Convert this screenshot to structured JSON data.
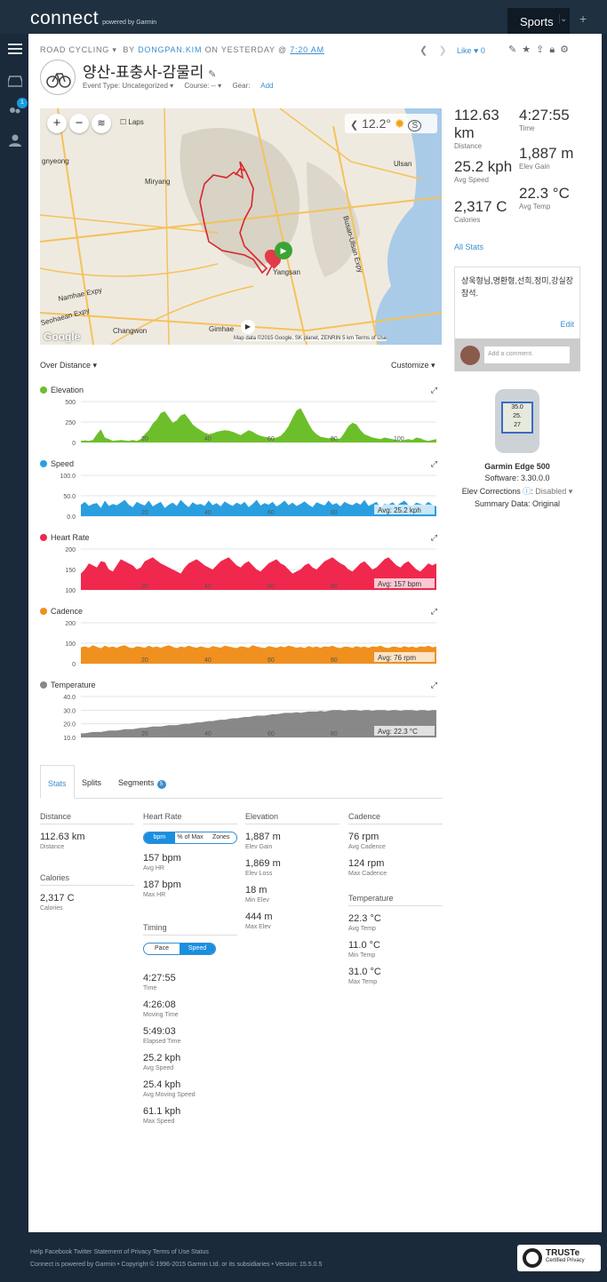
{
  "brand": {
    "logo": "connect",
    "powered": "powered by Garmin"
  },
  "topnav": {
    "sports": "Sports",
    "caret": "⌄",
    "plus": "+"
  },
  "notif_count": "1",
  "activity": {
    "type": "ROAD CYCLING",
    "by": "BY",
    "user": "DONGPAN.KIM",
    "on": "ON YESTERDAY @",
    "time": "7:20 AM",
    "title": "양산-표충사-감물리",
    "event_type": "Event Type: Uncategorized ▾",
    "course": "Course: -- ▾",
    "gear_label": "Gear:",
    "gear_add": "Add",
    "like": "Like",
    "like_count": "0"
  },
  "map": {
    "laps": "Laps",
    "temp": "12.2°",
    "labels": [
      "gnyeong",
      "Miryang",
      "Ulsan",
      "Changwon",
      "Gimhae",
      "Yangsan",
      "Namhae Expy",
      "Busan-Ulsan Expy",
      "Seohaean Expy"
    ],
    "footer": "Map data ©2015 Google, SK planet, ZENRIN   5 km   Terms of Use",
    "google": "Google"
  },
  "summary": {
    "distance": {
      "value": "112.63 km",
      "label": "Distance"
    },
    "time": {
      "value": "4:27:55",
      "label": "Time"
    },
    "speed": {
      "value": "25.2 kph",
      "label": "Avg Speed"
    },
    "elev": {
      "value": "1,887 m",
      "label": "Elev Gain"
    },
    "calories": {
      "value": "2,317 C",
      "label": "Calories"
    },
    "temp": {
      "value": "22.3 °C",
      "label": "Avg Temp"
    },
    "all_stats": "All Stats"
  },
  "comment": {
    "text": "상욱형님,명환형,선희,정미,강실장 참석.",
    "edit": "Edit",
    "placeholder": "Add a comment."
  },
  "device": {
    "name": "Garmin Edge 500",
    "software": "Software: 3.30.0.0",
    "elev_label": "Elev Corrections",
    "elev_value": "Disabled ▾",
    "summary": "Summary Data: Original",
    "screen": [
      "35.0",
      "25.",
      "27"
    ]
  },
  "charts_header": {
    "over": "Over Distance ▾",
    "customize": "Customize ▾"
  },
  "chart_data": [
    {
      "type": "area",
      "title": "Elevation",
      "color": "#6cbf2a",
      "ylim": [
        0,
        500
      ],
      "yticks": [
        "500",
        "250",
        "0"
      ],
      "xticks": [
        "20",
        "40",
        "60",
        "80",
        "100"
      ],
      "avg": "",
      "values": [
        20,
        25,
        20,
        30,
        100,
        160,
        60,
        40,
        20,
        25,
        30,
        25,
        20,
        30,
        20,
        40,
        100,
        150,
        230,
        280,
        360,
        380,
        310,
        240,
        270,
        330,
        350,
        290,
        220,
        180,
        150,
        120,
        100,
        110,
        130,
        140,
        150,
        145,
        130,
        110,
        90,
        120,
        150,
        130,
        100,
        80,
        70,
        60,
        50,
        60,
        80,
        130,
        200,
        300,
        390,
        420,
        330,
        230,
        150,
        100,
        70,
        60,
        50,
        60,
        40,
        50,
        120,
        200,
        240,
        220,
        150,
        100,
        80,
        60,
        50,
        40,
        60,
        50,
        40,
        30,
        20,
        30,
        40,
        30,
        60,
        50,
        30,
        20,
        30,
        40
      ]
    },
    {
      "type": "area",
      "title": "Speed",
      "color": "#2a9fe0",
      "ylim": [
        0,
        100
      ],
      "yticks": [
        "100.0",
        "50.0",
        "0.0"
      ],
      "xticks": [
        "20",
        "40",
        "60",
        "80",
        "100"
      ],
      "avg": "Avg: 25.2 kph",
      "values": [
        28,
        35,
        25,
        30,
        32,
        20,
        38,
        25,
        30,
        27,
        33,
        40,
        28,
        22,
        35,
        30,
        26,
        38,
        24,
        30,
        35,
        20,
        28,
        33,
        25,
        40,
        30,
        22,
        34,
        28,
        30,
        25,
        38,
        27,
        32,
        24,
        36,
        30,
        25,
        33,
        28,
        35,
        22,
        30,
        40,
        26,
        32,
        28,
        35,
        24,
        30,
        38,
        27,
        33,
        25,
        30,
        36,
        28,
        22,
        34,
        30,
        26,
        38,
        28,
        32,
        24,
        35,
        30,
        27,
        33,
        28,
        40,
        25,
        30,
        35,
        22,
        30,
        28,
        34,
        26,
        32,
        38,
        28,
        25,
        33,
        30,
        27,
        35,
        28,
        24
      ]
    },
    {
      "type": "area",
      "title": "Heart Rate",
      "color": "#f0284e",
      "ylim": [
        100,
        200
      ],
      "yticks": [
        "200",
        "150",
        "100"
      ],
      "xticks": [
        "20",
        "40",
        "60",
        "80",
        "100"
      ],
      "avg": "Avg: 157 bpm",
      "values": [
        140,
        150,
        165,
        160,
        155,
        170,
        168,
        150,
        145,
        160,
        175,
        170,
        165,
        160,
        150,
        155,
        170,
        175,
        180,
        172,
        165,
        160,
        155,
        150,
        145,
        140,
        155,
        165,
        170,
        175,
        168,
        160,
        155,
        150,
        160,
        170,
        175,
        180,
        170,
        160,
        155,
        165,
        170,
        160,
        150,
        145,
        155,
        165,
        170,
        175,
        165,
        160,
        150,
        140,
        145,
        150,
        160,
        165,
        155,
        150,
        160,
        170,
        175,
        180,
        172,
        165,
        160,
        150,
        145,
        155,
        165,
        170,
        160,
        150,
        155,
        165,
        175,
        180,
        170,
        160,
        155,
        165,
        170,
        160,
        150,
        145,
        155,
        165,
        160,
        165
      ]
    },
    {
      "type": "area",
      "title": "Cadence",
      "color": "#f0901e",
      "ylim": [
        0,
        200
      ],
      "yticks": [
        "200",
        "100",
        "0"
      ],
      "xticks": [
        "20",
        "40",
        "60",
        "80",
        "100"
      ],
      "avg": "Avg: 76 rpm",
      "values": [
        80,
        85,
        78,
        90,
        82,
        75,
        88,
        80,
        84,
        78,
        86,
        90,
        80,
        76,
        85,
        82,
        78,
        88,
        80,
        84,
        78,
        85,
        90,
        82,
        76,
        84,
        80,
        88,
        82,
        78,
        85,
        80,
        76,
        86,
        82,
        78,
        88,
        84,
        80,
        76,
        85,
        82,
        78,
        90,
        84,
        80,
        76,
        86,
        82,
        78,
        85,
        80,
        88,
        84,
        78,
        82,
        76,
        86,
        80,
        84,
        78,
        85,
        82,
        88,
        80,
        76,
        84,
        82,
        78,
        86,
        80,
        84,
        78,
        85,
        82,
        88,
        80,
        76,
        84,
        82,
        78,
        86,
        80,
        84,
        78,
        85,
        82,
        88,
        80,
        84
      ]
    },
    {
      "type": "area",
      "title": "Temperature",
      "color": "#888888",
      "ylim": [
        10,
        40
      ],
      "yticks": [
        "40.0",
        "30.0",
        "20.0",
        "10.0"
      ],
      "xticks": [
        "20",
        "40",
        "60",
        "80"
      ],
      "avg": "Avg: 22.3 °C",
      "values": [
        13,
        13,
        13.5,
        14,
        14,
        14,
        14.5,
        15,
        15,
        15,
        15.5,
        16,
        16,
        16,
        16.5,
        17,
        17,
        17.5,
        18,
        18,
        18,
        18.5,
        19,
        19,
        19,
        19.5,
        20,
        20,
        20.5,
        21,
        21,
        21.5,
        22,
        22,
        22.5,
        23,
        23,
        23.5,
        24,
        24,
        24.5,
        25,
        25,
        25.5,
        26,
        26,
        26,
        26.5,
        27,
        27,
        27.5,
        28,
        28,
        28,
        28.5,
        28,
        28.5,
        29,
        29,
        29,
        29.5,
        29,
        29.5,
        30,
        30,
        30,
        29.5,
        30,
        30,
        30,
        29.5,
        30,
        30,
        29.5,
        30,
        30,
        30,
        29.5,
        30,
        30,
        29.5,
        30,
        30,
        30,
        29.5,
        30,
        30,
        29.5,
        30,
        30
      ]
    }
  ],
  "tabs": {
    "stats": "Stats",
    "splits": "Splits",
    "segments": "Segments",
    "seg_count": "5"
  },
  "stats": {
    "distance": {
      "header": "Distance",
      "value": "112.63 km",
      "label": "Distance"
    },
    "calories": {
      "header": "Calories",
      "value": "2,317 C",
      "label": "Calories"
    },
    "hr": {
      "header": "Heart Rate",
      "seg": [
        "bpm",
        "% of Max",
        "Zones"
      ],
      "items": [
        {
          "v": "157 bpm",
          "l": "Avg HR"
        },
        {
          "v": "187 bpm",
          "l": "Max HR"
        }
      ]
    },
    "timing": {
      "header": "Timing",
      "seg": [
        "Pace",
        "Speed"
      ],
      "items": [
        {
          "v": "4:27:55",
          "l": "Time"
        },
        {
          "v": "4:26:08",
          "l": "Moving Time"
        },
        {
          "v": "5:49:03",
          "l": "Elapsed Time"
        },
        {
          "v": "25.2 kph",
          "l": "Avg Speed"
        },
        {
          "v": "25.4 kph",
          "l": "Avg Moving Speed"
        },
        {
          "v": "61.1 kph",
          "l": "Max Speed"
        }
      ]
    },
    "elevation": {
      "header": "Elevation",
      "items": [
        {
          "v": "1,887 m",
          "l": "Elev Gain"
        },
        {
          "v": "1,869 m",
          "l": "Elev Loss"
        },
        {
          "v": "18 m",
          "l": "Min Elev"
        },
        {
          "v": "444 m",
          "l": "Max Elev"
        }
      ]
    },
    "cadence": {
      "header": "Cadence",
      "items": [
        {
          "v": "76 rpm",
          "l": "Avg Cadence"
        },
        {
          "v": "124 rpm",
          "l": "Max Cadence"
        }
      ]
    },
    "temperature": {
      "header": "Temperature",
      "items": [
        {
          "v": "22.3 °C",
          "l": "Avg Temp"
        },
        {
          "v": "11.0 °C",
          "l": "Min Temp"
        },
        {
          "v": "31.0 °C",
          "l": "Max Temp"
        }
      ]
    }
  },
  "footer": {
    "links": "Help Facebook Twitter Statement of Privacy Terms of Use Status",
    "copy": "Connect is powered by Garmin • Copyright © 1996-2015 Garmin Ltd. or its subsidiaries • Version: 15.5.0.5"
  },
  "truste": {
    "name": "TRUSTe",
    "sub": "Certified Privacy"
  }
}
